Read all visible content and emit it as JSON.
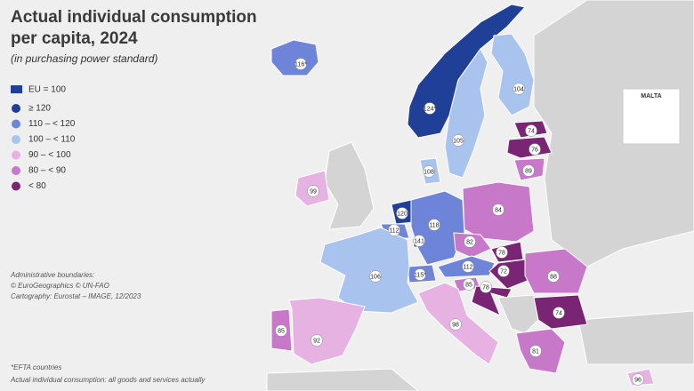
{
  "header": {
    "title_lines": [
      "Actual individual consumption",
      "per capita, 2024"
    ],
    "subtitle": "(in purchasing power standard)"
  },
  "legend": {
    "title": "EU = 100",
    "items": [
      {
        "label": "≥ 120",
        "color": "#203f96"
      },
      {
        "label": "110 – < 120",
        "color": "#6d84d8"
      },
      {
        "label": "100 – < 110",
        "color": "#a9c3ef"
      },
      {
        "label": "90 – < 100",
        "color": "#e6b2e1"
      },
      {
        "label": "80 – < 90",
        "color": "#c778c8"
      },
      {
        "label": "< 80",
        "color": "#7a2474"
      }
    ]
  },
  "regions": [
    {
      "value": 116,
      "label": "116*",
      "color": "#6d84d8"
    },
    {
      "value": 124,
      "label": "124*",
      "color": "#203f96"
    },
    {
      "value": 105,
      "color": "#a9c3ef"
    },
    {
      "value": 104,
      "color": "#a9c3ef"
    },
    {
      "value": 74,
      "color": "#7a2474"
    },
    {
      "value": 76,
      "color": "#7a2474"
    },
    {
      "value": 89,
      "color": "#c778c8"
    },
    {
      "value": 108,
      "color": "#a9c3ef"
    },
    {
      "value": 99,
      "color": "#e6b2e1"
    },
    {
      "value": 120,
      "color": "#203f96"
    },
    {
      "value": 112,
      "color": "#6d84d8"
    },
    {
      "value": 141,
      "color": "#203f96"
    },
    {
      "value": 118,
      "color": "#6d84d8"
    },
    {
      "value": 84,
      "color": "#c778c8"
    },
    {
      "value": 82,
      "color": "#c778c8"
    },
    {
      "value": 78,
      "color": "#7a2474"
    },
    {
      "value": 112,
      "color": "#6d84d8"
    },
    {
      "value": 72,
      "color": "#7a2474"
    },
    {
      "value": 85,
      "color": "#c778c8"
    },
    {
      "value": 78,
      "color": "#7a2474"
    },
    {
      "value": 115,
      "label": "115*",
      "color": "#6d84d8"
    },
    {
      "value": 106,
      "color": "#a9c3ef"
    },
    {
      "value": 88,
      "color": "#c778c8"
    },
    {
      "value": 74,
      "color": "#7a2474"
    },
    {
      "value": 98,
      "color": "#e6b2e1"
    },
    {
      "value": 85,
      "color": "#c778c8"
    },
    {
      "value": 92,
      "color": "#e6b2e1"
    },
    {
      "value": 81,
      "color": "#c778c8"
    },
    {
      "value": 96,
      "color": "#e6b2e1"
    },
    {
      "value": 92,
      "color": "#e6b2e1"
    }
  ],
  "inset": {
    "title": "MALTA"
  },
  "notes": {
    "source": [
      "Administrative boundaries:",
      "© EuroGeographics © UN-FAO",
      "Cartography: Eurostat – IMAGE, 12/2023"
    ],
    "footnotes": [
      "*EFTA countries",
      "Actual individual consumption: all goods and services actually"
    ]
  }
}
